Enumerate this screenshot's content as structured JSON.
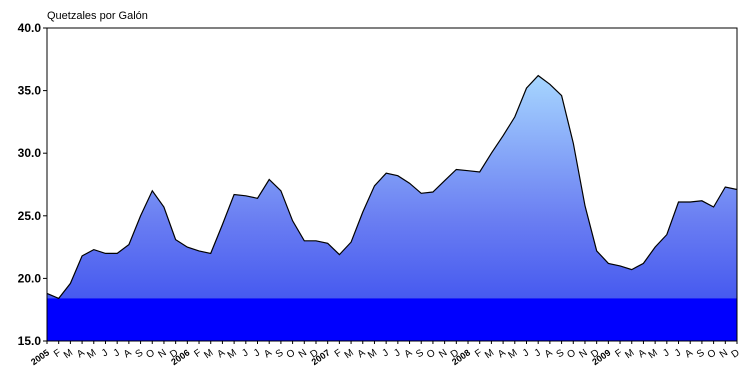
{
  "chart_data": {
    "type": "area",
    "title": "",
    "ylabel": "Quetzales por Galón",
    "xlabel": "",
    "ylim": [
      15,
      40
    ],
    "yticks": [
      "15.0",
      "20.0",
      "25.0",
      "30.0",
      "35.0",
      "40.0"
    ],
    "grid": false,
    "legend": "none",
    "categories": [
      "2005",
      "F",
      "M",
      "A",
      "M",
      "J",
      "J",
      "A",
      "S",
      "O",
      "N",
      "D",
      "2006",
      "F",
      "M",
      "A",
      "M",
      "J",
      "J",
      "A",
      "S",
      "O",
      "N",
      "D",
      "2007",
      "F",
      "M",
      "A",
      "M",
      "J",
      "J",
      "A",
      "S",
      "O",
      "N",
      "D",
      "2008",
      "F",
      "M",
      "A",
      "M",
      "J",
      "J",
      "A",
      "S",
      "O",
      "N",
      "D",
      "2009",
      "F",
      "M",
      "A",
      "M",
      "J",
      "J",
      "A",
      "S",
      "O",
      "N",
      "D"
    ],
    "series": [
      {
        "values": [
          18.8,
          18.4,
          19.6,
          21.8,
          22.3,
          22.0,
          22.0,
          22.7,
          25.0,
          27.0,
          25.7,
          23.1,
          22.5,
          22.2,
          22.0,
          24.3,
          26.7,
          26.6,
          26.4,
          27.9,
          27.0,
          24.6,
          23.0,
          23.0,
          22.8,
          21.9,
          22.9,
          25.3,
          27.4,
          28.4,
          28.2,
          27.6,
          26.8,
          26.9,
          27.8,
          28.7,
          28.6,
          28.5,
          30.0,
          31.4,
          32.9,
          35.2,
          36.2,
          35.5,
          34.6,
          30.8,
          25.8,
          22.2,
          21.2,
          21.0,
          20.7,
          21.2,
          22.5,
          23.5,
          26.1,
          26.1,
          26.2,
          25.7,
          27.3,
          27.1
        ]
      }
    ],
    "colors": {
      "fill_top": "#a8d8ff",
      "fill_mid": "#6a7ef2",
      "fill_bottom": "#0000ff",
      "line": "#000000"
    }
  }
}
